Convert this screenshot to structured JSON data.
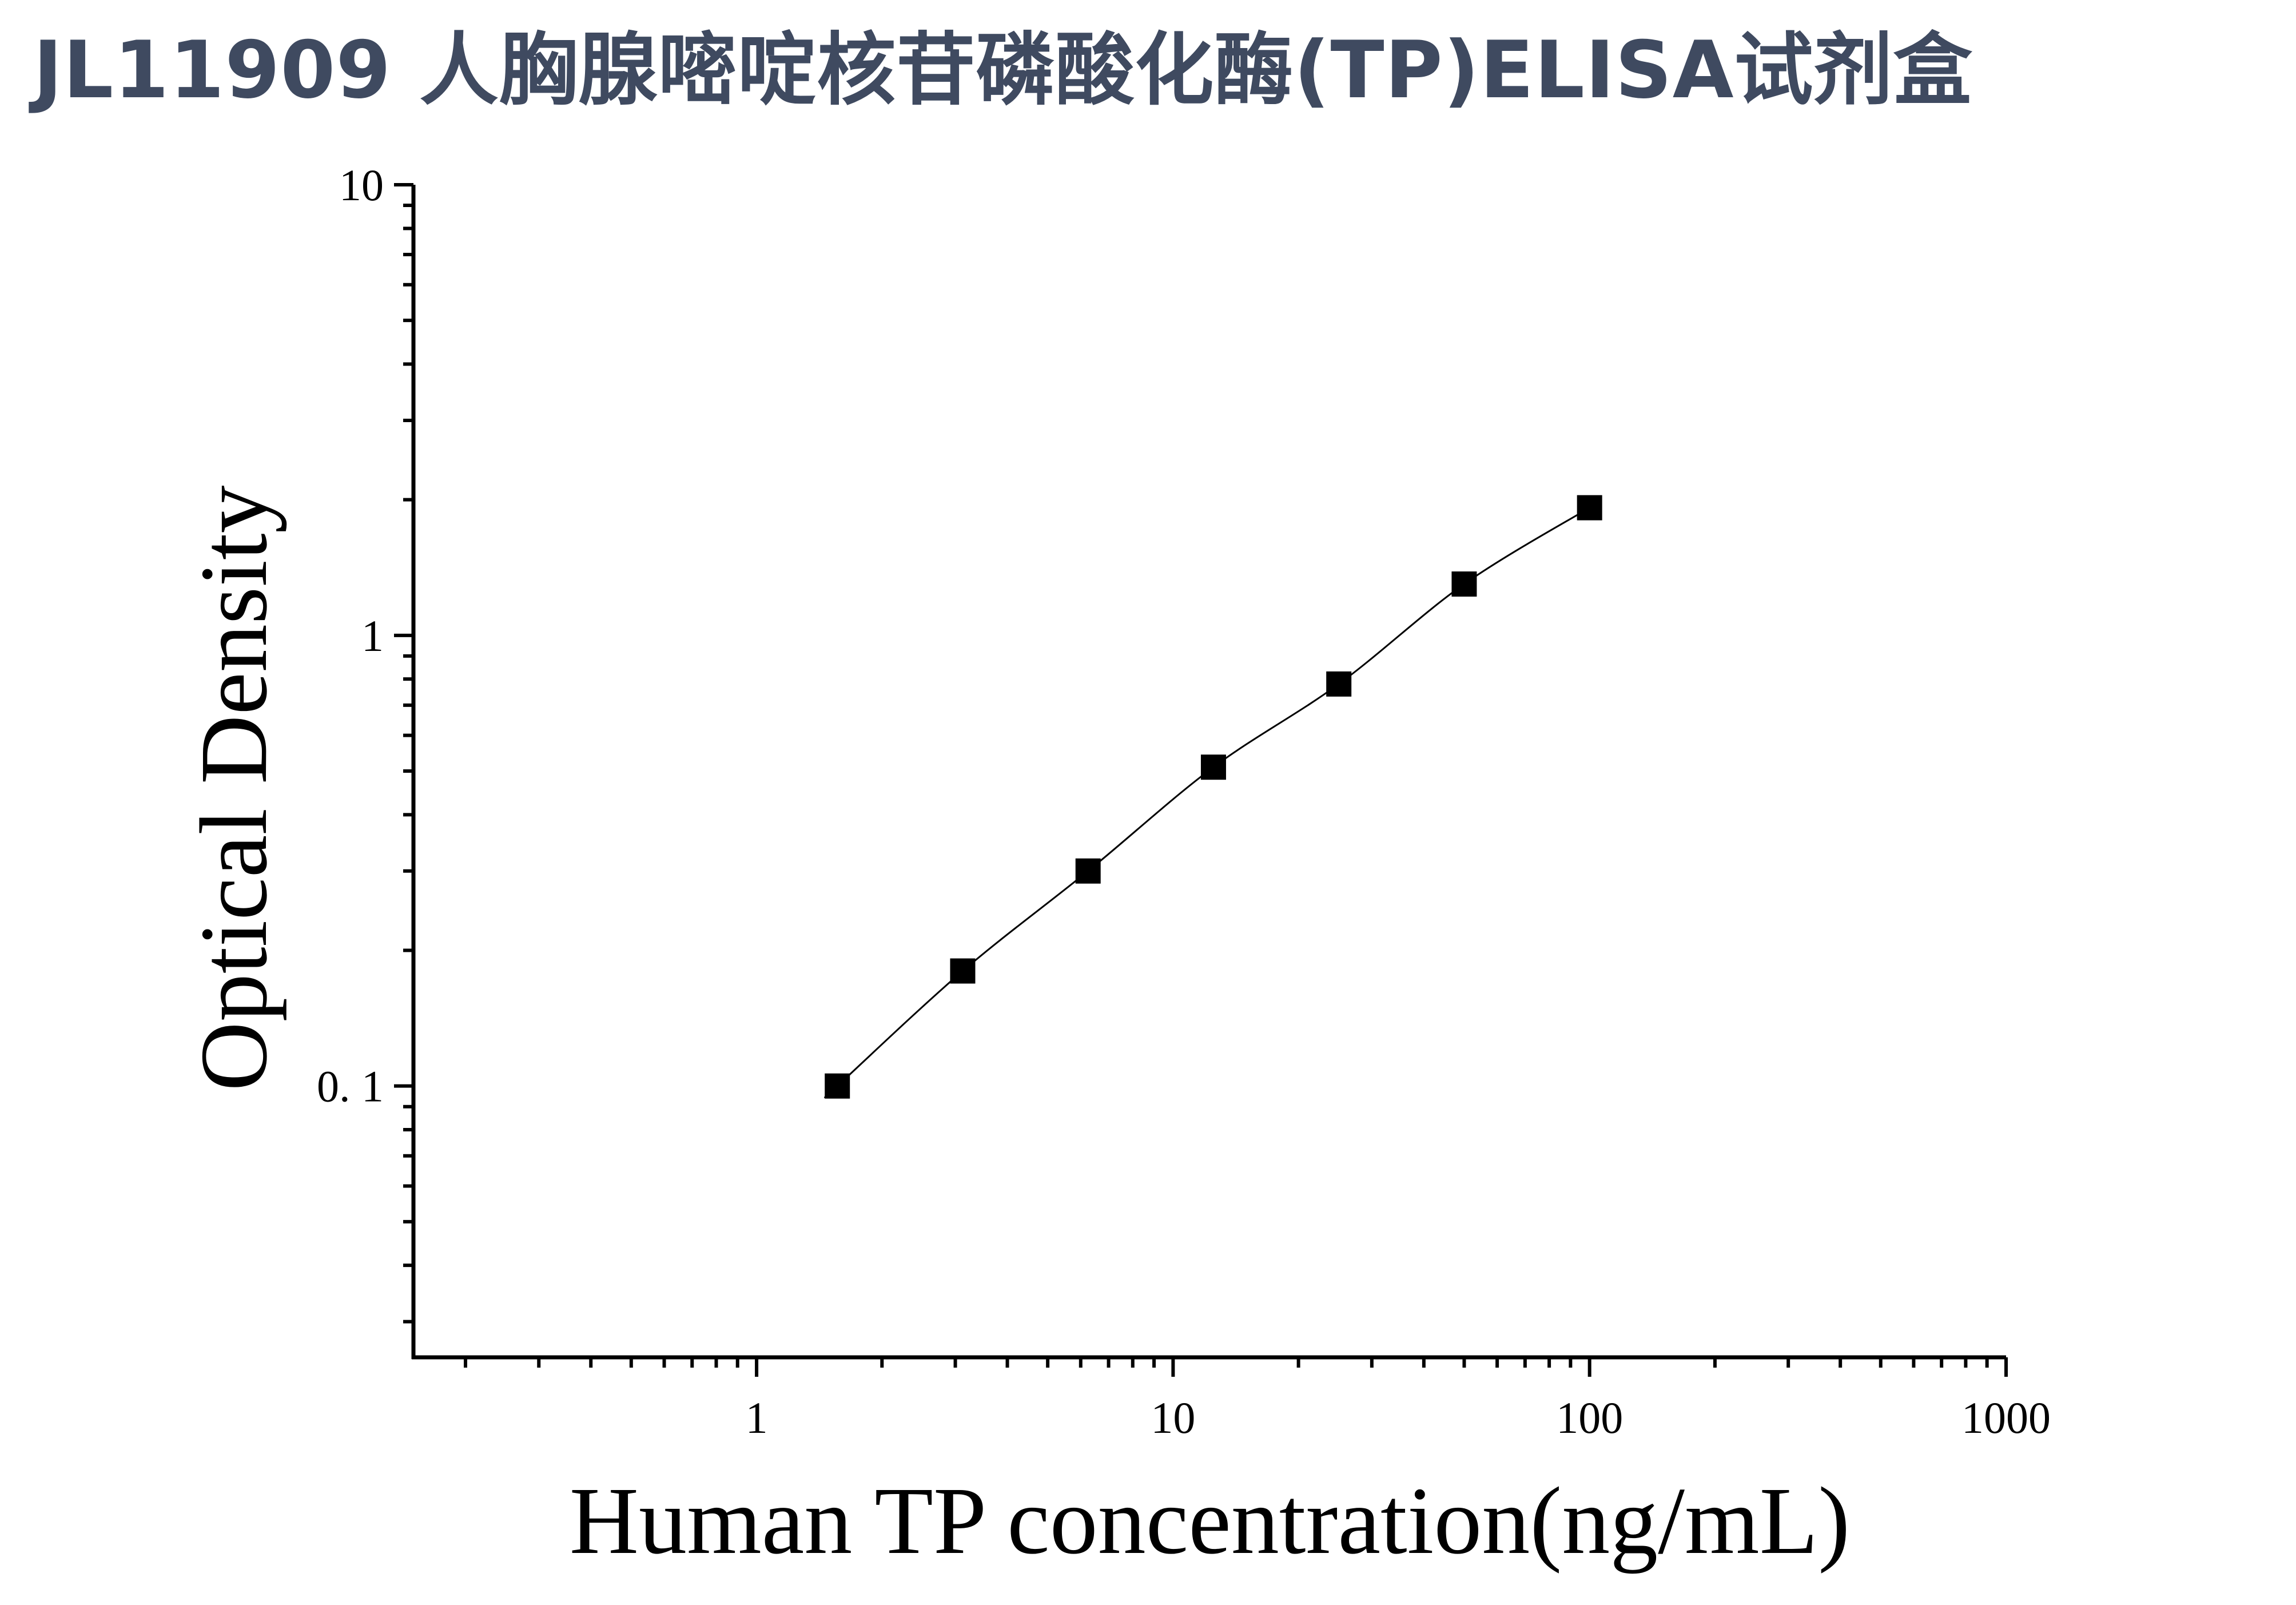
{
  "header": {
    "title": "JL11909 人胸腺嘧啶核苷磷酸化酶(TP)ELISA试剂盒",
    "title_color": "#3f4a60"
  },
  "chart_data": {
    "type": "scatter",
    "x_scale": "log",
    "y_scale": "log",
    "xlabel": "Human TP concentration(ng/mL)",
    "ylabel": "Optical Density",
    "xlim": [
      0.15,
      1000
    ],
    "ylim": [
      0.025,
      10
    ],
    "x_ticks": [
      {
        "value": 1,
        "label": "1"
      },
      {
        "value": 10,
        "label": "10"
      },
      {
        "value": 100,
        "label": "100"
      },
      {
        "value": 1000,
        "label": "1000"
      }
    ],
    "y_ticks": [
      {
        "value": 0.1,
        "label": "0. 1"
      },
      {
        "value": 1,
        "label": "1"
      },
      {
        "value": 10,
        "label": "10"
      }
    ],
    "grid": false,
    "legend": "none",
    "marker": "square",
    "marker_color": "#000000",
    "fit_line": true,
    "points": [
      {
        "x": 1.5625,
        "y": 0.1
      },
      {
        "x": 3.125,
        "y": 0.18
      },
      {
        "x": 6.25,
        "y": 0.3
      },
      {
        "x": 12.5,
        "y": 0.51
      },
      {
        "x": 25,
        "y": 0.78
      },
      {
        "x": 50,
        "y": 1.3
      },
      {
        "x": 100,
        "y": 1.92
      }
    ]
  }
}
